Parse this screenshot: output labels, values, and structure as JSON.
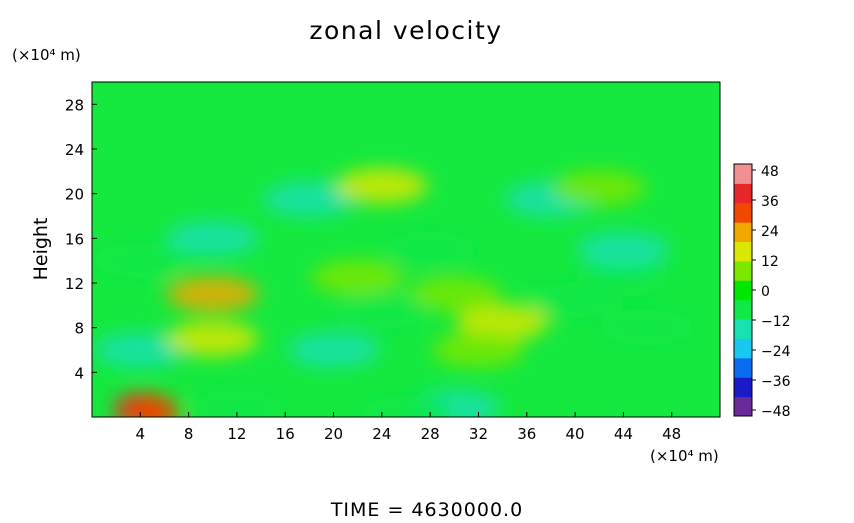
{
  "chart_data": {
    "type": "heatmap",
    "title": "zonal velocity",
    "xlabel": "",
    "ylabel": "Height",
    "x_unit": "(×10⁴ m)",
    "y_unit": "(×10⁴ m)",
    "xlim": [
      0,
      52
    ],
    "ylim": [
      0,
      30
    ],
    "x_ticks": [
      4,
      8,
      12,
      16,
      20,
      24,
      28,
      32,
      36,
      40,
      44,
      48
    ],
    "y_ticks": [
      4,
      8,
      12,
      16,
      20,
      24,
      28
    ],
    "colorbar": {
      "ticks": [
        48,
        36,
        24,
        12,
        0,
        -12,
        -24,
        -36,
        -48
      ],
      "range": [
        -48,
        48
      ],
      "colors": [
        "#6a2a9a",
        "#1a1ac8",
        "#0a6cf0",
        "#18c8f0",
        "#18e0b0",
        "#10e848",
        "#00e800",
        "#7ae800",
        "#d8e800",
        "#f0a800",
        "#f04800",
        "#e82828",
        "#f09090"
      ]
    },
    "field_features": [
      {
        "x": 4,
        "y": 0.6,
        "value": 38
      },
      {
        "x": 5,
        "y": 0.4,
        "value": 30
      },
      {
        "x": 12,
        "y": 0.8,
        "value": -10
      },
      {
        "x": 30,
        "y": 0.8,
        "value": -12
      },
      {
        "x": 26,
        "y": 0.3,
        "value": -8
      },
      {
        "x": 4,
        "y": 6,
        "value": -12
      },
      {
        "x": 10,
        "y": 7,
        "value": 12
      },
      {
        "x": 20,
        "y": 6,
        "value": -14
      },
      {
        "x": 34,
        "y": 8.5,
        "value": 18
      },
      {
        "x": 32,
        "y": 6,
        "value": 10
      },
      {
        "x": 46,
        "y": 8,
        "value": -8
      },
      {
        "x": 10,
        "y": 11,
        "value": 20
      },
      {
        "x": 22,
        "y": 12.5,
        "value": 10
      },
      {
        "x": 30,
        "y": 11,
        "value": 6
      },
      {
        "x": 24,
        "y": 9.5,
        "value": -6
      },
      {
        "x": 40,
        "y": 10.5,
        "value": -6
      },
      {
        "x": 44,
        "y": 12.5,
        "value": -4
      },
      {
        "x": 10,
        "y": 16,
        "value": -16
      },
      {
        "x": 4,
        "y": 14,
        "value": -10
      },
      {
        "x": 28,
        "y": 15,
        "value": -6
      },
      {
        "x": 44,
        "y": 15,
        "value": -12
      },
      {
        "x": 18,
        "y": 19.5,
        "value": -14
      },
      {
        "x": 38,
        "y": 19.5,
        "value": -12
      },
      {
        "x": 24,
        "y": 20.7,
        "value": 14
      },
      {
        "x": 42,
        "y": 20.5,
        "value": 6
      }
    ]
  },
  "footer": {
    "time_label": "TIME  =  4630000.0"
  }
}
